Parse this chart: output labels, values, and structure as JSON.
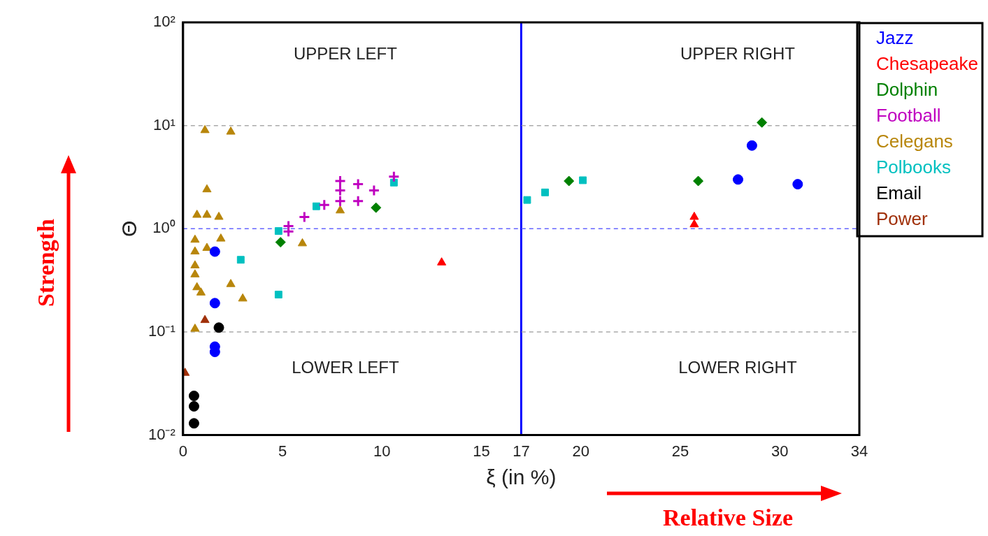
{
  "chart_data": {
    "type": "scatter",
    "xlabel": "ξ (in %)",
    "ylabel": "Θ",
    "xlim": [
      0,
      34
    ],
    "xticks": [
      0,
      5,
      10,
      15,
      17,
      20,
      25,
      30,
      34
    ],
    "ylim": [
      0.01,
      100
    ],
    "yticks": [
      {
        "value": 0.01,
        "label": "10⁻²"
      },
      {
        "value": 0.1,
        "label": "10⁻¹"
      },
      {
        "value": 1,
        "label": "10⁰"
      },
      {
        "value": 10,
        "label": "10¹"
      },
      {
        "value": 100,
        "label": "10²"
      }
    ],
    "log": "y",
    "grid": false,
    "legend": "right",
    "ref_lines": [
      {
        "axis": "x",
        "value": 17,
        "color": "#0000ff",
        "line_style": "solid"
      },
      {
        "axis": "y",
        "value": 1,
        "color": "#6666ff",
        "line_style": "dashed"
      },
      {
        "axis": "y",
        "value": 10,
        "color": "#aaaaaa",
        "line_style": "dashed"
      },
      {
        "axis": "y",
        "value": 0.1,
        "color": "#aaaaaa",
        "line_style": "dashed"
      }
    ],
    "annotations": [
      "UPPER LEFT",
      "UPPER RIGHT",
      "LOWER LEFT",
      "LOWER RIGHT",
      "Strength",
      "Relative Size"
    ],
    "series": [
      {
        "name": "Jazz",
        "color": "#0000ff",
        "marker": "circle",
        "x": [
          28.6,
          27.9,
          30.9,
          1.6,
          1.6,
          1.6,
          1.6
        ],
        "values": [
          6.4,
          3.0,
          2.7,
          0.6,
          0.19,
          0.072,
          0.064
        ]
      },
      {
        "name": "Chesapeake",
        "color": "#ff0000",
        "marker": "triangle",
        "x": [
          13.0,
          25.7,
          25.7
        ],
        "values": [
          0.47,
          1.3,
          1.1
        ]
      },
      {
        "name": "Dolphin",
        "color": "#008000",
        "marker": "diamond",
        "x": [
          29.1,
          19.4,
          25.9,
          9.7,
          4.9
        ],
        "values": [
          10.7,
          2.9,
          2.9,
          1.6,
          0.74
        ]
      },
      {
        "name": "Football",
        "color": "#c000c0",
        "marker": "cross",
        "x": [
          6.1,
          5.3,
          5.3,
          7.1,
          7.9,
          7.9,
          7.9,
          8.8,
          8.8,
          9.6,
          10.6
        ],
        "values": [
          1.3,
          1.06,
          0.94,
          1.7,
          2.9,
          2.35,
          1.85,
          2.7,
          1.85,
          2.35,
          3.2
        ]
      },
      {
        "name": "Celegans",
        "color": "#b8860b",
        "marker": "triangle",
        "x": [
          1.1,
          2.4,
          1.2,
          0.7,
          1.2,
          1.8,
          1.9,
          0.6,
          0.6,
          1.2,
          0.6,
          0.6,
          0.7,
          0.9,
          2.4,
          3.0,
          6.0,
          7.9,
          0.6
        ],
        "values": [
          9.0,
          8.7,
          2.4,
          1.36,
          1.36,
          1.3,
          0.8,
          0.78,
          0.6,
          0.65,
          0.44,
          0.36,
          0.27,
          0.24,
          0.29,
          0.21,
          0.72,
          1.5,
          0.107
        ]
      },
      {
        "name": "Polbooks",
        "color": "#00c0c0",
        "marker": "square",
        "x": [
          10.6,
          6.7,
          4.8,
          2.9,
          4.8,
          17.3,
          18.2,
          20.1
        ],
        "values": [
          2.8,
          1.65,
          0.95,
          0.5,
          0.23,
          1.9,
          2.25,
          2.95
        ]
      },
      {
        "name": "Email",
        "color": "#000000",
        "marker": "circle",
        "x": [
          1.8,
          0.55,
          0.55,
          0.55
        ],
        "values": [
          0.11,
          0.024,
          0.019,
          0.013
        ]
      },
      {
        "name": "Power",
        "color": "#a0300a",
        "marker": "triangle",
        "x": [
          1.1,
          0.1
        ],
        "values": [
          0.13,
          0.04
        ]
      }
    ]
  }
}
